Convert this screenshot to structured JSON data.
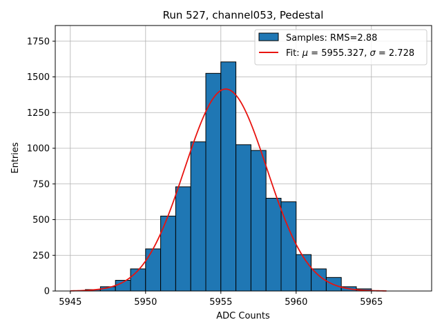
{
  "chart_data": {
    "type": "bar",
    "title": "Run 527, channel053, Pedestal",
    "xlabel": "ADC Counts",
    "ylabel": "Entries",
    "xlim": [
      5944,
      5969
    ],
    "ylim": [
      0,
      1860
    ],
    "xticks": [
      5945,
      5950,
      5955,
      5960,
      5965
    ],
    "yticks": [
      0,
      250,
      500,
      750,
      1000,
      1250,
      1500,
      1750
    ],
    "grid": true,
    "legend_position": "upper-right",
    "histogram": {
      "name": "Samples: RMS=2.88",
      "color": "#1f77b4",
      "edge_color": "#000000",
      "bin_edges": [
        5946,
        5947,
        5948,
        5949,
        5950,
        5951,
        5952,
        5953,
        5954,
        5955,
        5956,
        5957,
        5958,
        5959,
        5960,
        5961,
        5962,
        5963,
        5964,
        5965
      ],
      "counts": [
        10,
        30,
        75,
        155,
        295,
        525,
        730,
        1045,
        1525,
        1605,
        1025,
        985,
        650,
        625,
        255,
        155,
        95,
        30,
        15
      ]
    },
    "fit": {
      "name_prefix": "Fit: ",
      "name_mu": "μ",
      "name_sigma": "σ",
      "name_text": "Fit: μ = 5955.327, σ = 2.728",
      "mu": 5955.327,
      "sigma": 2.728,
      "amplitude": 1415,
      "x_range": [
        5945,
        5966
      ],
      "color": "#e8130f"
    }
  }
}
